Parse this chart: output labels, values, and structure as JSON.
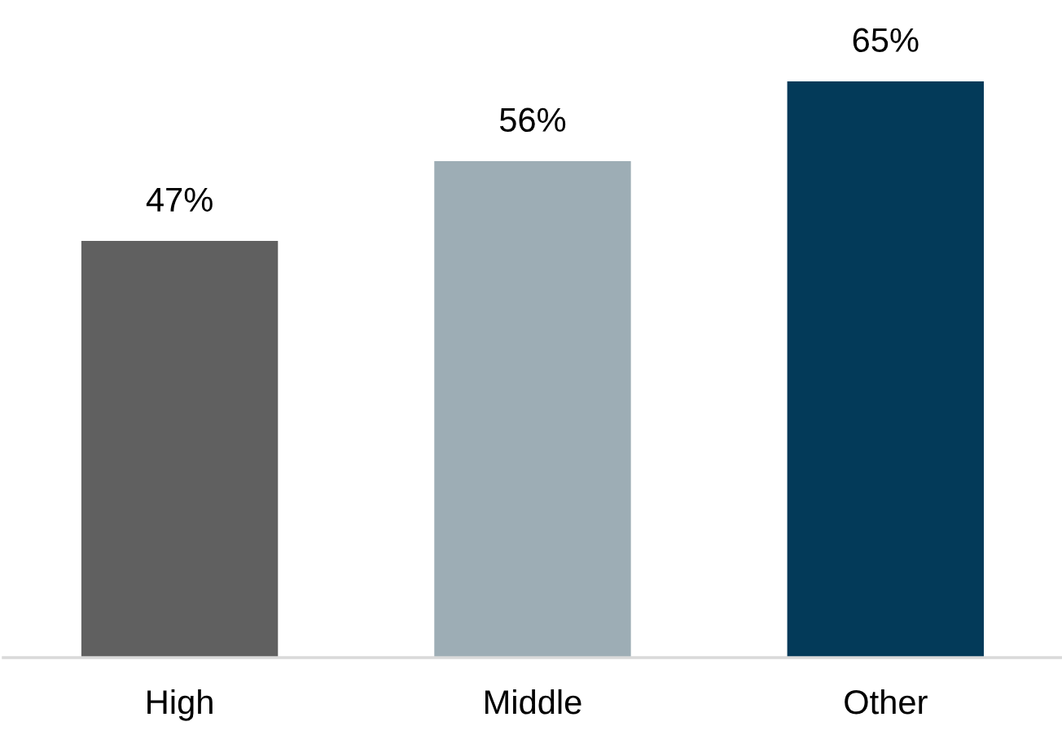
{
  "chart_data": {
    "type": "bar",
    "categories": [
      "High",
      "Middle",
      "Other"
    ],
    "values": [
      47,
      56,
      65
    ],
    "colors": [
      "#606060",
      "#9dadb5",
      "#033a59"
    ],
    "value_labels": [
      "47%",
      "56%",
      "65%"
    ]
  }
}
